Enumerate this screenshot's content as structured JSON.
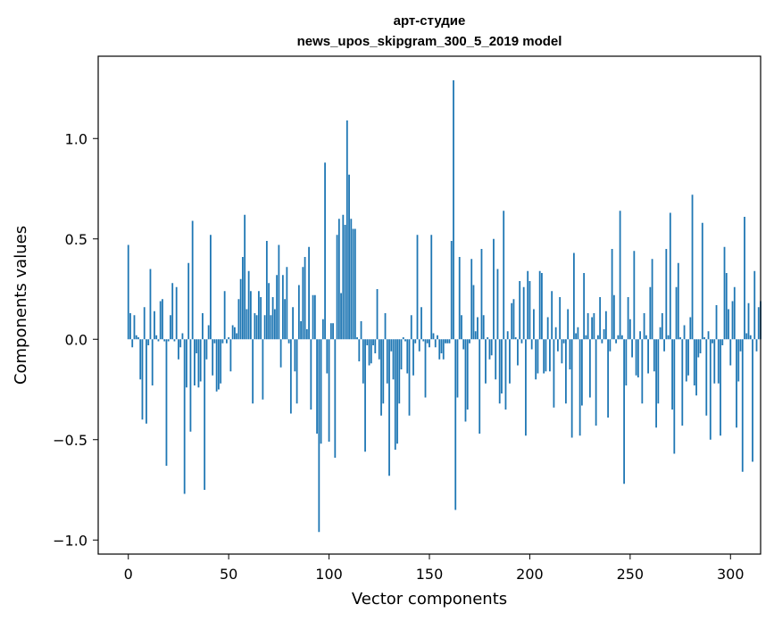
{
  "chart_data": {
    "type": "bar",
    "title": "арт-студие",
    "subtitle": "news_upos_skipgram_300_5_2019 model",
    "xlabel": "Vector components",
    "ylabel": "Components values",
    "xlim": [
      -15,
      315
    ],
    "ylim": [
      -1.07,
      1.41
    ],
    "xticks": [
      0,
      50,
      100,
      150,
      200,
      250,
      300
    ],
    "yticks": [
      -1.0,
      -0.5,
      0.0,
      0.5,
      1.0
    ],
    "ytick_labels": [
      "−1.0",
      "−0.5",
      "0.0",
      "0.5",
      "1.0"
    ],
    "grid": false,
    "bar_color": "#1f77b4",
    "values": [
      0.47,
      0.13,
      -0.04,
      0.12,
      0.02,
      0.01,
      -0.2,
      -0.4,
      0.16,
      -0.42,
      -0.03,
      0.35,
      -0.23,
      0.14,
      0.02,
      -0.01,
      0.19,
      0.2,
      -0.01,
      -0.63,
      -0.01,
      0.12,
      0.28,
      -0.01,
      0.26,
      -0.1,
      -0.04,
      0.03,
      -0.77,
      -0.24,
      0.38,
      -0.46,
      0.59,
      -0.23,
      -0.07,
      -0.24,
      -0.21,
      0.13,
      -0.75,
      -0.1,
      0.07,
      0.52,
      -0.18,
      -0.02,
      -0.26,
      -0.25,
      -0.22,
      -0.02,
      0.24,
      -0.02,
      0.01,
      -0.16,
      0.07,
      0.06,
      0.03,
      0.2,
      0.3,
      0.41,
      0.62,
      0.15,
      0.34,
      0.24,
      -0.32,
      0.13,
      0.12,
      0.24,
      0.21,
      -0.3,
      0.12,
      0.49,
      0.28,
      0.12,
      0.21,
      0.15,
      0.32,
      0.47,
      -0.14,
      0.32,
      0.2,
      0.36,
      -0.02,
      -0.37,
      0.16,
      -0.16,
      -0.32,
      0.27,
      0.09,
      0.36,
      0.41,
      0.05,
      0.46,
      -0.35,
      0.22,
      0.22,
      -0.47,
      -0.96,
      -0.52,
      0.1,
      0.88,
      -0.17,
      -0.51,
      0.08,
      0.08,
      -0.59,
      0.52,
      0.6,
      0.23,
      0.62,
      0.57,
      1.09,
      0.82,
      0.6,
      0.55,
      0.55,
      0.01,
      -0.11,
      0.09,
      -0.22,
      -0.56,
      -0.03,
      -0.13,
      -0.12,
      -0.03,
      -0.07,
      0.25,
      -0.1,
      -0.38,
      -0.32,
      0.13,
      -0.22,
      -0.68,
      -0.06,
      -0.2,
      -0.55,
      -0.52,
      -0.32,
      -0.15,
      0.01,
      -0.01,
      -0.17,
      -0.38,
      0.12,
      -0.18,
      -0.02,
      0.52,
      -0.06,
      0.16,
      -0.01,
      -0.29,
      -0.02,
      -0.04,
      0.52,
      0.03,
      -0.04,
      0.02,
      -0.1,
      -0.07,
      -0.1,
      -0.02,
      -0.02,
      -0.02,
      0.49,
      1.29,
      -0.85,
      -0.29,
      0.41,
      0.12,
      -0.05,
      -0.41,
      -0.35,
      -0.02,
      0.4,
      0.27,
      0.04,
      0.11,
      -0.47,
      0.45,
      0.12,
      -0.22,
      0.01,
      -0.1,
      -0.08,
      0.5,
      -0.2,
      0.35,
      -0.32,
      -0.27,
      0.64,
      -0.35,
      0.04,
      -0.22,
      0.18,
      0.2,
      0.01,
      -0.13,
      0.29,
      -0.02,
      0.26,
      -0.48,
      0.34,
      0.29,
      -0.05,
      0.15,
      -0.2,
      -0.17,
      0.34,
      0.33,
      -0.17,
      -0.16,
      0.11,
      -0.16,
      0.24,
      -0.34,
      0.06,
      -0.06,
      0.21,
      -0.12,
      -0.02,
      -0.32,
      0.15,
      -0.15,
      -0.49,
      0.43,
      0.03,
      0.06,
      -0.48,
      -0.33,
      0.33,
      0.02,
      0.13,
      -0.29,
      0.11,
      0.13,
      -0.43,
      0.02,
      0.21,
      -0.02,
      0.05,
      0.14,
      -0.39,
      -0.06,
      0.45,
      0.22,
      -0.02,
      0.02,
      0.64,
      0.02,
      -0.72,
      -0.23,
      0.21,
      0.1,
      -0.09,
      0.44,
      -0.18,
      -0.19,
      0.04,
      -0.32,
      0.13,
      0.02,
      -0.17,
      0.26,
      0.4,
      -0.16,
      -0.44,
      -0.32,
      0.06,
      0.13,
      -0.06,
      0.45,
      0.02,
      0.63,
      -0.35,
      -0.57,
      0.26,
      0.38,
      0.01,
      -0.43,
      0.07,
      -0.21,
      -0.18,
      0.11,
      0.72,
      -0.23,
      -0.28,
      -0.09,
      -0.07,
      0.58,
      0.01,
      -0.38,
      0.04,
      -0.5,
      -0.02,
      -0.22,
      0.17,
      -0.22,
      -0.48,
      -0.03,
      0.46,
      0.33,
      0.15,
      -0.13,
      0.19,
      0.26,
      -0.44,
      -0.21,
      -0.06,
      -0.66,
      0.61,
      0.03,
      0.18,
      0.02,
      -0.61,
      0.34,
      -0.06,
      0.16,
      0.19
    ]
  }
}
